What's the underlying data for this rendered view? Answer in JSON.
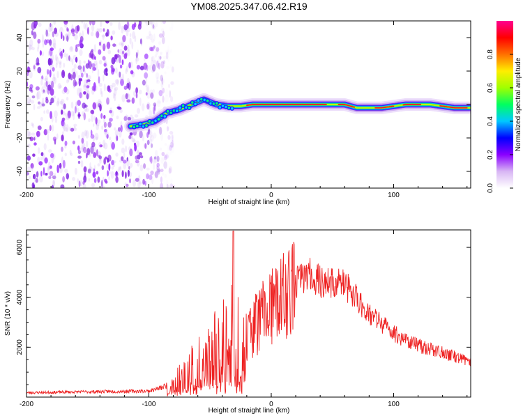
{
  "title": "YM08.2025.347.06.42.R19",
  "chart_data": [
    {
      "type": "heatmap",
      "name": "spectrogram",
      "xlabel": "Height of straight line (km)",
      "ylabel": "Frequency (Hz)",
      "xlim": [
        -200,
        163
      ],
      "ylim": [
        -50,
        50
      ],
      "x_ticks": [
        "-200",
        "-100",
        "0",
        "100"
      ],
      "x_tick_values": [
        -200,
        -100,
        0,
        100
      ],
      "y_ticks": [
        "-40",
        "-20",
        "0",
        "20",
        "40"
      ],
      "y_tick_values": [
        -40,
        -20,
        0,
        20,
        40
      ],
      "noise_region_x": [
        -200,
        -88
      ],
      "ridge": {
        "x": [
          -115,
          -105,
          -95,
          -85,
          -75,
          -65,
          -55,
          -45,
          -35,
          -25,
          -15,
          0,
          20,
          40,
          60,
          70,
          80,
          90,
          100,
          110,
          120,
          130,
          140,
          150,
          163
        ],
        "y": [
          -13,
          -12,
          -10,
          -5,
          -3,
          0,
          3,
          0,
          -1,
          -1,
          0,
          0,
          0,
          0,
          0,
          -2,
          -2,
          -2,
          -1,
          0,
          0,
          0,
          -1,
          -2,
          -2
        ]
      },
      "colorbar": {
        "label": "Normalized spectral amplitude",
        "range": [
          0,
          1
        ],
        "ticks": [
          "0.0",
          "0.2",
          "0.4",
          "0.6",
          "0.8"
        ],
        "tick_values": [
          0.0,
          0.2,
          0.4,
          0.6,
          0.8
        ],
        "colors": [
          "#ffffff",
          "#d8b6f4",
          "#8a00ff",
          "#0000ff",
          "#00c8ff",
          "#00ff60",
          "#a0ff00",
          "#ffee00",
          "#ff7000",
          "#ff0000",
          "#ff0090"
        ]
      }
    },
    {
      "type": "line",
      "name": "snr",
      "xlabel": "Height of straight line (km)",
      "ylabel": "SNR (10 * v/v)",
      "xlim": [
        -200,
        163
      ],
      "ylim": [
        0,
        6700
      ],
      "x_ticks": [
        "-200",
        "-100",
        "0",
        "100"
      ],
      "x_tick_values": [
        -200,
        -100,
        0,
        100
      ],
      "y_ticks": [
        "2000",
        "4000",
        "6000"
      ],
      "y_tick_values": [
        2000,
        4000,
        6000
      ],
      "series_color": "#ee2222",
      "envelope": {
        "x": [
          -200,
          -150,
          -100,
          -90,
          -80,
          -70,
          -60,
          -50,
          -40,
          -35,
          -31,
          -25,
          -20,
          -10,
          0,
          10,
          20,
          30,
          40,
          50,
          55,
          60,
          70,
          80,
          100,
          120,
          140,
          163
        ],
        "y": [
          180,
          220,
          250,
          380,
          600,
          1050,
          1500,
          1900,
          2300,
          2500,
          3200,
          2500,
          2700,
          3300,
          3700,
          4200,
          4700,
          5000,
          4700,
          4600,
          4700,
          4550,
          4000,
          3400,
          2600,
          2100,
          1800,
          1450
        ]
      },
      "spike": {
        "x": -31,
        "y": 6650
      }
    }
  ]
}
